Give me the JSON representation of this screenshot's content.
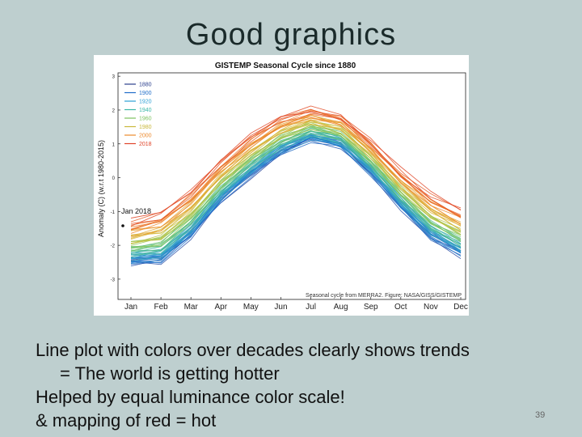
{
  "slide": {
    "title": "Good graphics",
    "bullets": [
      "Line plot with colors over decades clearly shows trends",
      "= The world is getting hotter",
      "Helped by equal luminance color scale!",
      "& mapping of red = hot"
    ],
    "page_number": "39"
  },
  "chart_data": {
    "type": "line",
    "title": "GISTEMP Seasonal Cycle since 1880",
    "ylabel": "Anomaly (C) (w.r.t 1980-2015)",
    "xlabel": "",
    "categories": [
      "Jan",
      "Feb",
      "Mar",
      "Apr",
      "May",
      "Jun",
      "Jul",
      "Aug",
      "Sep",
      "Oct",
      "Nov",
      "Dec"
    ],
    "yticks": [
      3,
      2,
      1,
      0,
      -1,
      -2,
      -3
    ],
    "ylim": [
      -3.6,
      3.1
    ],
    "grid": false,
    "legend_position": "top-left",
    "legend": [
      "1880",
      "1900",
      "1920",
      "1940",
      "1960",
      "1980",
      "2000",
      "2018"
    ],
    "legend_colors": [
      "#2a3e8c",
      "#1f6ec9",
      "#2b9fd6",
      "#3ab7a8",
      "#7cc25e",
      "#c9b83b",
      "#ec8a2c",
      "#e0452a"
    ],
    "annotation": "Jan 2018",
    "source_note": "Seasonal cycle from MERRA2. Figure: NASA/GISS/GISTEMP",
    "series_ranges": [
      {
        "name": "1880",
        "values": [
          -2.5,
          -2.45,
          -1.7,
          -0.65,
          0.1,
          0.75,
          1.15,
          0.95,
          0.15,
          -0.85,
          -1.75,
          -2.25
        ]
      },
      {
        "name": "2018",
        "values": [
          -1.3,
          -1.05,
          -0.4,
          0.5,
          1.25,
          1.8,
          2.05,
          1.85,
          1.1,
          0.2,
          -0.5,
          -0.95
        ]
      }
    ]
  }
}
